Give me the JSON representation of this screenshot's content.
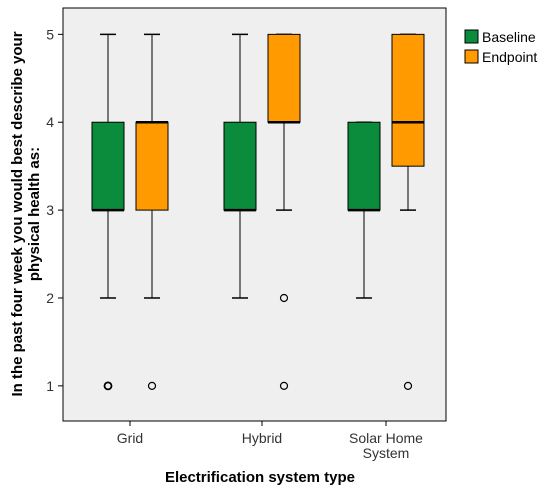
{
  "chart_data": {
    "type": "box",
    "title": "",
    "xlabel": "Electrification system type",
    "ylabel_lines": [
      "In the past four week you would best describe your",
      "physical health as:"
    ],
    "ylim": [
      0.6,
      5.3
    ],
    "yticks": [
      1,
      2,
      3,
      4,
      5
    ],
    "categories": [
      {
        "label_lines": [
          "Grid"
        ]
      },
      {
        "label_lines": [
          "Hybrid"
        ]
      },
      {
        "label_lines": [
          "Solar Home",
          "System"
        ]
      }
    ],
    "legend_position": "right",
    "series": [
      {
        "name": "Baseline",
        "color": "#0a8c3c",
        "boxes": [
          {
            "min": 2,
            "q1": 3,
            "median": 3,
            "q3": 4,
            "max": 5,
            "outliers": [
              1
            ]
          },
          {
            "min": 2,
            "q1": 3,
            "median": 3,
            "q3": 4,
            "max": 5,
            "outliers": []
          },
          {
            "min": 2,
            "q1": 3,
            "median": 3,
            "q3": 4,
            "max": 4,
            "outliers": []
          }
        ]
      },
      {
        "name": "Endpoint",
        "color": "#ff9a00",
        "boxes": [
          {
            "min": 2,
            "q1": 3,
            "median": 4,
            "q3": 4,
            "max": 5,
            "outliers": [
              1
            ]
          },
          {
            "min": 3,
            "q1": 4,
            "median": 4,
            "q3": 5,
            "max": 5,
            "outliers": [
              2,
              1
            ]
          },
          {
            "min": 3,
            "q1": 3.5,
            "median": 4,
            "q3": 5,
            "max": 5,
            "outliers": [
              1
            ]
          }
        ]
      }
    ]
  }
}
